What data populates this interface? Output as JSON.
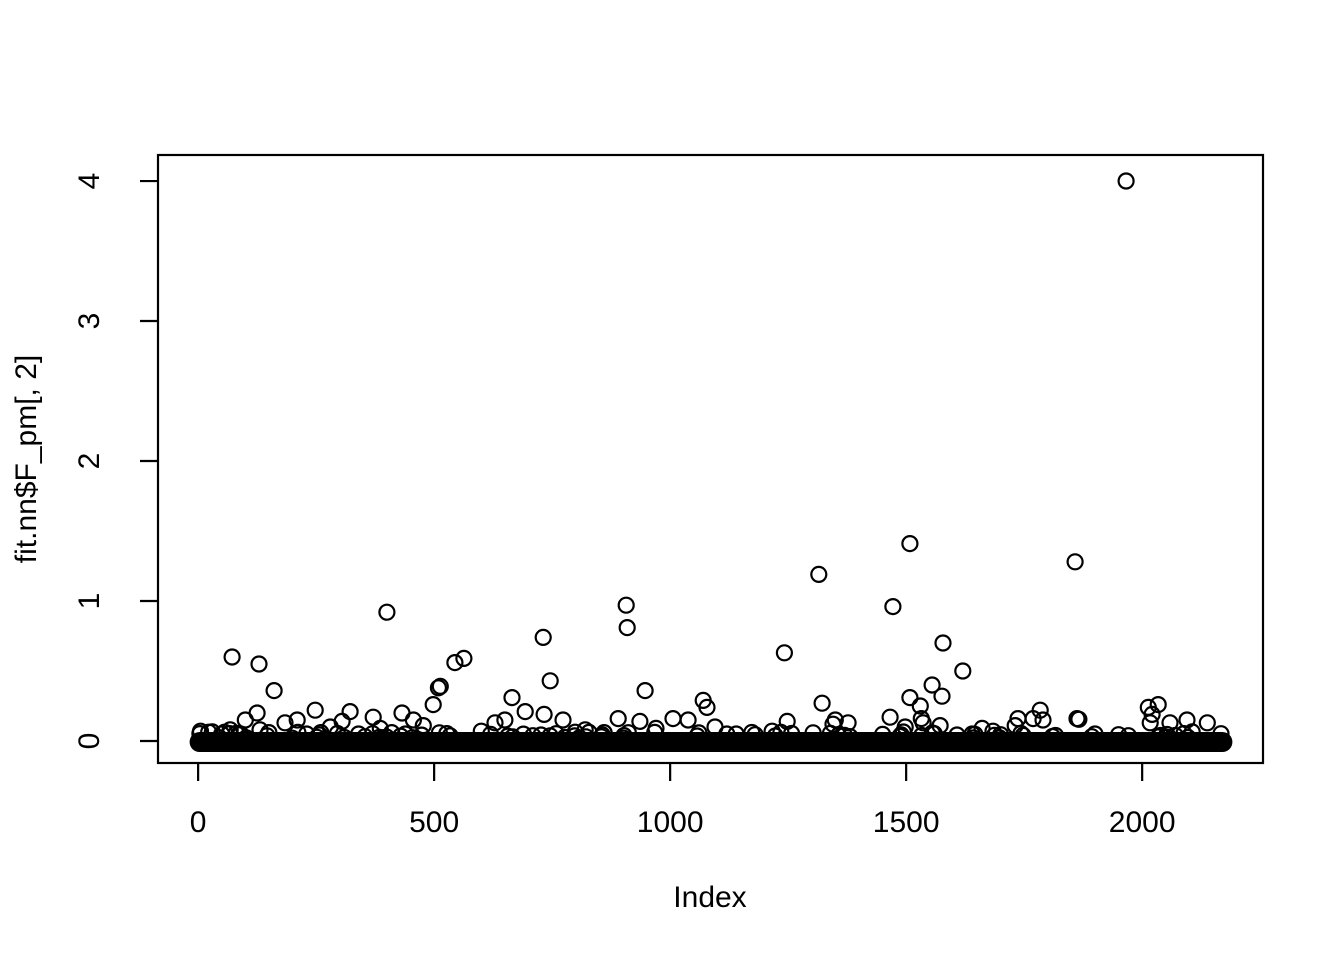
{
  "figure": {
    "kind": "r-base-scatter-plot",
    "background_color": "#ffffff",
    "foreground_color": "#000000"
  },
  "chart_data": {
    "type": "scatter",
    "title": "",
    "xlabel": "Index",
    "ylabel": "fit.nn$F_pm[, 2]",
    "marker": {
      "shape": "open-circle",
      "color": "#000000"
    },
    "grid": false,
    "legend": null,
    "xlim": [
      -85,
      2256
    ],
    "ylim": [
      -0.157,
      4.186
    ],
    "x_ticks": [
      0,
      500,
      1000,
      1500,
      2000
    ],
    "y_ticks": [
      0,
      1,
      2,
      3,
      4
    ],
    "n_points_total": 2180,
    "baseline_cluster": {
      "description": "dense overplotted band of near-zero values rendering as a solid black bar",
      "x_min": 1,
      "x_max": 2172,
      "y_min": 0.0,
      "y_max": 0.04,
      "count": 2075,
      "texture_bumps": 85,
      "texture_seed": 7
    },
    "points": [
      [
        5,
        0.07
      ],
      [
        30,
        0.065
      ],
      [
        50,
        0.05
      ],
      [
        68,
        0.08
      ],
      [
        72,
        0.6
      ],
      [
        90,
        0.05
      ],
      [
        100,
        0.15
      ],
      [
        125,
        0.2
      ],
      [
        129,
        0.55
      ],
      [
        131,
        0.08
      ],
      [
        150,
        0.06
      ],
      [
        161,
        0.36
      ],
      [
        184,
        0.13
      ],
      [
        210,
        0.15
      ],
      [
        230,
        0.05
      ],
      [
        248,
        0.22
      ],
      [
        260,
        0.06
      ],
      [
        280,
        0.1
      ],
      [
        305,
        0.14
      ],
      [
        322,
        0.21
      ],
      [
        340,
        0.05
      ],
      [
        371,
        0.17
      ],
      [
        386,
        0.09
      ],
      [
        400,
        0.92
      ],
      [
        410,
        0.06
      ],
      [
        432,
        0.2
      ],
      [
        456,
        0.15
      ],
      [
        477,
        0.11
      ],
      [
        498,
        0.26
      ],
      [
        509,
        0.38
      ],
      [
        513,
        0.39
      ],
      [
        544,
        0.56
      ],
      [
        563,
        0.59
      ],
      [
        600,
        0.07
      ],
      [
        629,
        0.13
      ],
      [
        650,
        0.15
      ],
      [
        665,
        0.31
      ],
      [
        693,
        0.21
      ],
      [
        731,
        0.74
      ],
      [
        733,
        0.19
      ],
      [
        746,
        0.43
      ],
      [
        773,
        0.15
      ],
      [
        820,
        0.08
      ],
      [
        860,
        0.06
      ],
      [
        890,
        0.16
      ],
      [
        907,
        0.97
      ],
      [
        909,
        0.81
      ],
      [
        936,
        0.14
      ],
      [
        947,
        0.36
      ],
      [
        970,
        0.09
      ],
      [
        1006,
        0.16
      ],
      [
        1038,
        0.15
      ],
      [
        1070,
        0.29
      ],
      [
        1078,
        0.24
      ],
      [
        1095,
        0.1
      ],
      [
        1120,
        0.05
      ],
      [
        1140,
        0.05
      ],
      [
        1180,
        0.045
      ],
      [
        1216,
        0.07
      ],
      [
        1242,
        0.63
      ],
      [
        1248,
        0.14
      ],
      [
        1315,
        1.19
      ],
      [
        1322,
        0.27
      ],
      [
        1345,
        0.12
      ],
      [
        1350,
        0.15
      ],
      [
        1377,
        0.13
      ],
      [
        1466,
        0.17
      ],
      [
        1472,
        0.96
      ],
      [
        1498,
        0.1
      ],
      [
        1508,
        1.41
      ],
      [
        1508,
        0.31
      ],
      [
        1530,
        0.25
      ],
      [
        1532,
        0.16
      ],
      [
        1536,
        0.13
      ],
      [
        1555,
        0.4
      ],
      [
        1572,
        0.11
      ],
      [
        1576,
        0.32
      ],
      [
        1578,
        0.7
      ],
      [
        1620,
        0.5
      ],
      [
        1640,
        0.05
      ],
      [
        1661,
        0.09
      ],
      [
        1684,
        0.07
      ],
      [
        1700,
        0.045
      ],
      [
        1731,
        0.11
      ],
      [
        1737,
        0.16
      ],
      [
        1769,
        0.16
      ],
      [
        1784,
        0.22
      ],
      [
        1790,
        0.15
      ],
      [
        1858,
        1.28
      ],
      [
        1862,
        0.16
      ],
      [
        1866,
        0.155
      ],
      [
        1900,
        0.05
      ],
      [
        1950,
        0.045
      ],
      [
        1966,
        4.0
      ],
      [
        2013,
        0.24
      ],
      [
        2017,
        0.13
      ],
      [
        2021,
        0.19
      ],
      [
        2034,
        0.26
      ],
      [
        2059,
        0.13
      ],
      [
        2095,
        0.15
      ],
      [
        2106,
        0.065
      ],
      [
        2138,
        0.13
      ]
    ]
  }
}
